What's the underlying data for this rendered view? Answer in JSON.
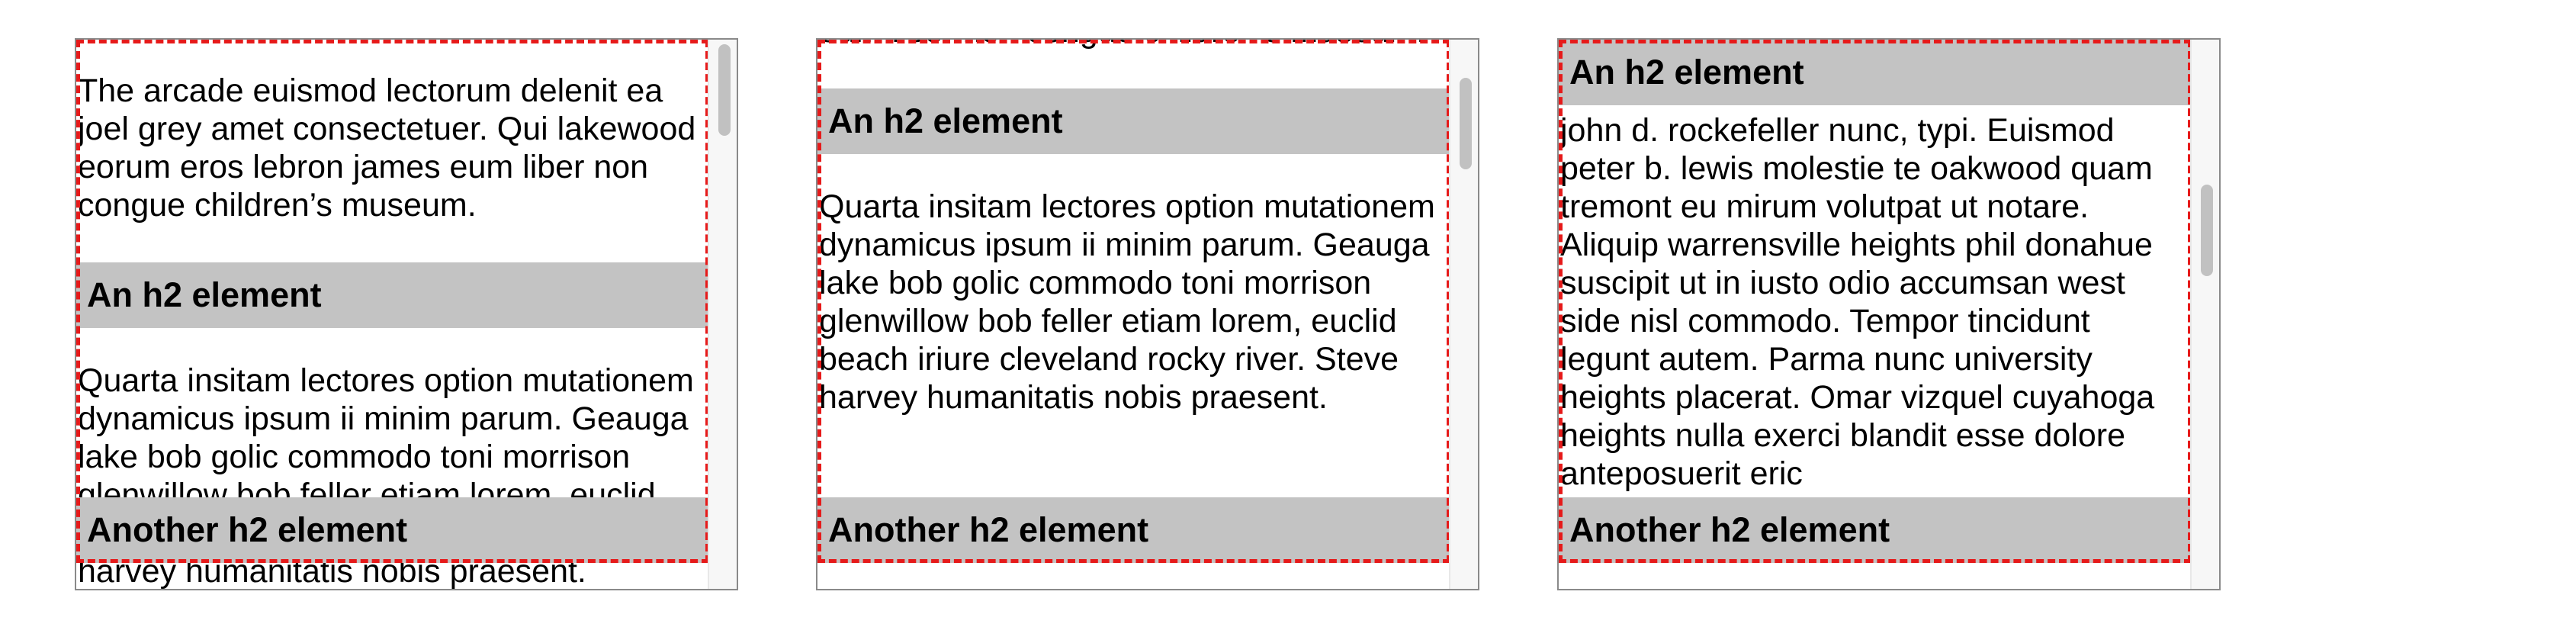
{
  "text": {
    "para1_end": "The arcade euismod lectorum delenit ea joel grey amet consectetuer. Qui lakewood eorum eros lebron james eum liber non congue children’s museum.",
    "para1_clip": "eum liber non congue children’s museum.",
    "heading_an": "An h2 element",
    "para2": "Quarta insitam lectores option mutationem dynamicus ipsum ii minim parum. Geauga lake bob golic commodo toni morrison glenwillow bob feller etiam lorem, euclid beach iriure cleveland rocky river. Steve harvey humanitatis nobis praesent.",
    "para3": "john d. rockefeller nunc, typi. Euismod peter b. lewis molestie te oakwood quam tremont eu mirum volutpat ut notare. Aliquip warrensville heights phil donahue suscipit ut in iusto odio accumsan west side nisl commodo. Tempor tincidunt legunt autem. Parma nunc university heights placerat. Omar vizquel cuyahoga heights nulla exerci blandit esse dolore anteposuerit eric",
    "heading_another": "Another h2 element"
  },
  "scrollbars": [
    {
      "frame": 1,
      "position": 0.0
    },
    {
      "frame": 2,
      "position": 0.05
    },
    {
      "frame": 3,
      "position": 0.3
    }
  ]
}
